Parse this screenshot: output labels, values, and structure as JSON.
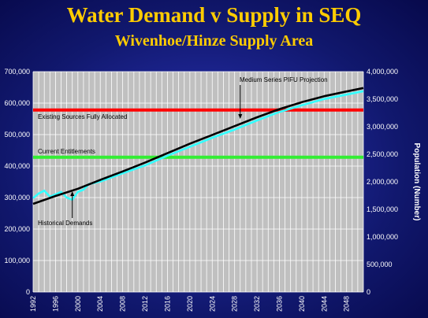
{
  "slide": {
    "title": "Water Demand v Supply in SEQ",
    "subtitle": "Wivenhoe/Hinze Supply Area"
  },
  "colors": {
    "title": "#ffcc00",
    "plot_background": "#c0c0c0",
    "existing_sources": "#ff0000",
    "current_entitlements": "#33ee33",
    "pifu_projection": "#000000",
    "historical_demands": "#33ffff"
  },
  "chart_data": {
    "type": "line",
    "xlabel": "",
    "ylabel": "",
    "y2label": "Population (Number)",
    "x_ticks": [
      "1992",
      "1996",
      "2000",
      "2004",
      "2008",
      "2012",
      "2016",
      "2020",
      "2024",
      "2028",
      "2032",
      "2036",
      "2040",
      "2044",
      "2048"
    ],
    "xlim": [
      1992,
      2051
    ],
    "ylim": [
      0,
      700000
    ],
    "y_ticks": [
      "0",
      "100,000",
      "200,000",
      "300,000",
      "400,000",
      "500,000",
      "600,000",
      "700,000"
    ],
    "y2lim": [
      0,
      4000000
    ],
    "y2_ticks": [
      "0",
      "500,000",
      "1,000,000",
      "1,500,000",
      "2,000,000",
      "2,500,000",
      "3,000,000",
      "3,500,000",
      "4,000,000"
    ],
    "grid": true,
    "reference_lines": [
      {
        "label": "Existing Sources Fully Allocated",
        "y": 578000
      },
      {
        "label": "Current Entitlements",
        "y": 428000
      }
    ],
    "series": [
      {
        "name": "Medium Series PIFU Projection",
        "x": [
          1992,
          1996,
          2000,
          2004,
          2008,
          2012,
          2016,
          2020,
          2024,
          2028,
          2032,
          2036,
          2040,
          2044,
          2048,
          2051
        ],
        "values": [
          280000,
          305000,
          328000,
          356000,
          383000,
          411000,
          441000,
          471000,
          499000,
          527000,
          555000,
          581000,
          603000,
          622000,
          637000,
          648000
        ]
      },
      {
        "name": "Historical Demands",
        "x": [
          1992,
          1993,
          1994,
          1995,
          1996,
          1997,
          1998,
          1999,
          2000,
          2001,
          2002,
          2004,
          2008,
          2012,
          2016,
          2020,
          2024,
          2028,
          2032,
          2036,
          2040,
          2044,
          2048,
          2051
        ],
        "values": [
          298000,
          313000,
          322000,
          303000,
          310000,
          318000,
          300000,
          293000,
          318000,
          325000,
          343000,
          351000,
          377000,
          402000,
          433000,
          461000,
          490000,
          516000,
          545000,
          572000,
          593000,
          613000,
          627000,
          638000
        ]
      }
    ]
  }
}
